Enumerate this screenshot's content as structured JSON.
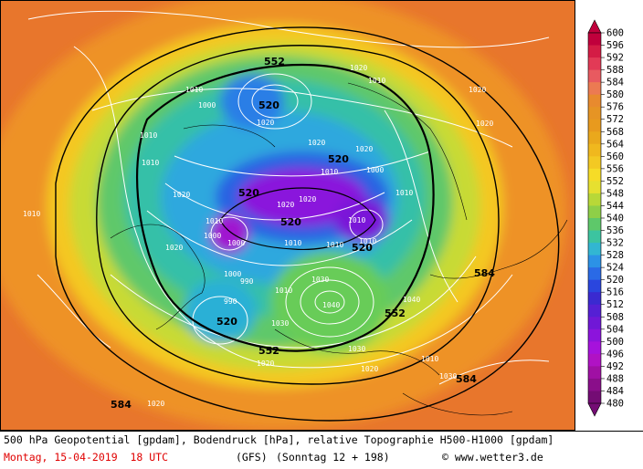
{
  "map": {
    "isobar_labels": [
      "1010",
      "1020",
      "1000",
      "990",
      "1030",
      "1040",
      "1010",
      "1020",
      "1000",
      "1010",
      "1020",
      "1010",
      "1020",
      "1010",
      "1000",
      "1010",
      "1020",
      "1010",
      "1030",
      "1020",
      "1010",
      "1010",
      "1020",
      "1000",
      "1010",
      "1020",
      "1010",
      "1000",
      "990",
      "1010",
      "1020",
      "1030",
      "1020",
      "1040",
      "1030",
      "1020",
      "1010",
      "1020",
      "1020",
      "1010"
    ],
    "height_labels": [
      "552",
      "520",
      "520",
      "520",
      "520",
      "520",
      "520",
      "552",
      "552",
      "584",
      "584",
      "584"
    ]
  },
  "legend": {
    "values": [
      "600",
      "596",
      "592",
      "588",
      "584",
      "580",
      "576",
      "572",
      "568",
      "564",
      "560",
      "556",
      "552",
      "548",
      "544",
      "540",
      "536",
      "532",
      "528",
      "524",
      "520",
      "516",
      "512",
      "508",
      "504",
      "500",
      "496",
      "492",
      "488",
      "484",
      "480"
    ],
    "colors": [
      "#c0003c",
      "#d41c45",
      "#e23a56",
      "#e85a60",
      "#ec7a52",
      "#e88a2e",
      "#e69424",
      "#e89a1e",
      "#eaa81c",
      "#f0b81e",
      "#f3c923",
      "#f6dc27",
      "#e6e030",
      "#b8d838",
      "#8ecf48",
      "#5ec86a",
      "#3cc4a0",
      "#32b6d2",
      "#2c92e6",
      "#2a6ae6",
      "#2a46de",
      "#3a2ad0",
      "#5520d4",
      "#7018d6",
      "#8c14dc",
      "#a612dc",
      "#b012c4",
      "#a010a4",
      "#8a0e8a",
      "#740c74"
    ]
  },
  "footer": {
    "line1": "500 hPa Geopotential [gpdam], Bodendruck [hPa], relative Topographie H500-H1000 [gpdam]",
    "date": "Montag, 15-04-2019  18 UTC",
    "model": "(GFS)",
    "run": "(Sonntag 12 + 198)",
    "copyright": "© www.wetter3.de"
  }
}
